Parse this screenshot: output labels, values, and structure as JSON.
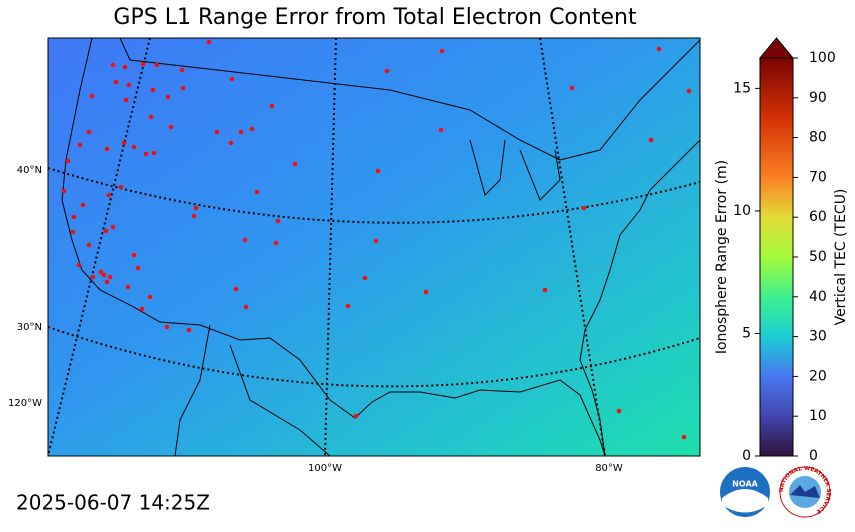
{
  "map": {
    "title": "GPS L1 Range Error from Total Electron Content",
    "timestamp": "2025-06-07 14:25Z",
    "graticule_labels": {
      "lat": [
        "40°N",
        "30°N"
      ],
      "lon": [
        "120°W",
        "100°W",
        "80°W"
      ]
    },
    "colorbar": {
      "ylabel": "Ionosphere Range Error (m)",
      "ylim": [
        0,
        16.24
      ],
      "yticks": [
        0,
        5,
        10,
        15
      ],
      "y2label": "Vertical TEC (TECU)",
      "y2lim": [
        0,
        100
      ],
      "y2ticks": [
        0,
        10,
        20,
        30,
        40,
        50,
        60,
        70,
        80,
        90,
        100
      ]
    },
    "logos": {
      "noaa": "NOAA",
      "nws": "NATIONAL WEATHER SERVICE"
    }
  }
}
